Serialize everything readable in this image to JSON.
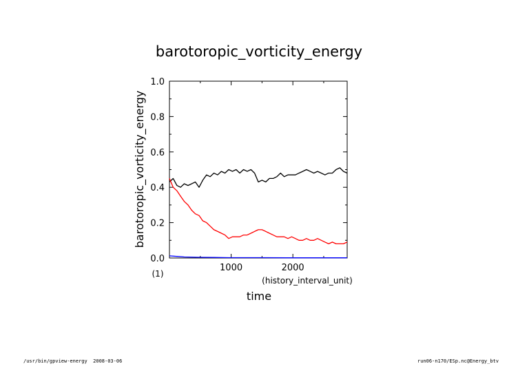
{
  "chart_data": {
    "type": "line",
    "title": "barotoropic_vorticity_energy",
    "ylabel": "barotoropic_vorticity_energy",
    "yunit": "(1)",
    "xlabel": "time",
    "xunit": "(history_interval_unit)",
    "xlim": [
      0,
      2880
    ],
    "ylim": [
      0,
      1.0
    ],
    "xticks": [
      "1000",
      "2000"
    ],
    "yticks": [
      "0.0",
      "0.2",
      "0.4",
      "0.6",
      "0.8",
      "1.0"
    ],
    "grid": false,
    "series": [
      {
        "color": "#000000",
        "x": [
          0,
          60,
          120,
          180,
          240,
          300,
          360,
          420,
          480,
          540,
          600,
          660,
          720,
          780,
          840,
          900,
          960,
          1020,
          1080,
          1140,
          1200,
          1260,
          1320,
          1380,
          1440,
          1500,
          1560,
          1620,
          1680,
          1740,
          1800,
          1860,
          1920,
          1980,
          2040,
          2100,
          2160,
          2220,
          2280,
          2340,
          2400,
          2460,
          2520,
          2580,
          2640,
          2700,
          2760,
          2820,
          2880
        ],
        "y": [
          0.43,
          0.45,
          0.41,
          0.4,
          0.42,
          0.41,
          0.42,
          0.43,
          0.4,
          0.44,
          0.47,
          0.46,
          0.48,
          0.47,
          0.49,
          0.48,
          0.5,
          0.49,
          0.5,
          0.48,
          0.5,
          0.49,
          0.5,
          0.48,
          0.43,
          0.44,
          0.43,
          0.45,
          0.45,
          0.46,
          0.48,
          0.46,
          0.47,
          0.47,
          0.47,
          0.48,
          0.49,
          0.5,
          0.49,
          0.48,
          0.49,
          0.48,
          0.47,
          0.48,
          0.48,
          0.5,
          0.51,
          0.49,
          0.48
        ]
      },
      {
        "color": "#ff0000",
        "x": [
          0,
          60,
          120,
          180,
          240,
          300,
          360,
          420,
          480,
          540,
          600,
          660,
          720,
          780,
          840,
          900,
          960,
          1020,
          1080,
          1140,
          1200,
          1260,
          1320,
          1380,
          1440,
          1500,
          1560,
          1620,
          1680,
          1740,
          1800,
          1860,
          1920,
          1980,
          2040,
          2100,
          2160,
          2220,
          2280,
          2340,
          2400,
          2460,
          2520,
          2580,
          2640,
          2700,
          2760,
          2820,
          2880
        ],
        "y": [
          0.45,
          0.4,
          0.38,
          0.35,
          0.32,
          0.3,
          0.27,
          0.25,
          0.24,
          0.21,
          0.2,
          0.18,
          0.16,
          0.15,
          0.14,
          0.13,
          0.11,
          0.12,
          0.12,
          0.12,
          0.13,
          0.13,
          0.14,
          0.15,
          0.16,
          0.16,
          0.15,
          0.14,
          0.13,
          0.12,
          0.12,
          0.12,
          0.11,
          0.12,
          0.11,
          0.1,
          0.1,
          0.11,
          0.1,
          0.1,
          0.11,
          0.1,
          0.09,
          0.08,
          0.09,
          0.08,
          0.08,
          0.08,
          0.09
        ]
      },
      {
        "color": "#0000ff",
        "x": [
          0,
          120,
          240,
          480,
          720,
          960,
          1440,
          1920,
          2400,
          2880
        ],
        "y": [
          0.012,
          0.009,
          0.006,
          0.004,
          0.003,
          0.002,
          0.002,
          0.001,
          0.001,
          0.001
        ]
      }
    ]
  },
  "footer": {
    "left": "/usr/bin/gpview-energy  2008-03-06",
    "right": "run06-n170/ESp.nc@Energy_btv"
  }
}
